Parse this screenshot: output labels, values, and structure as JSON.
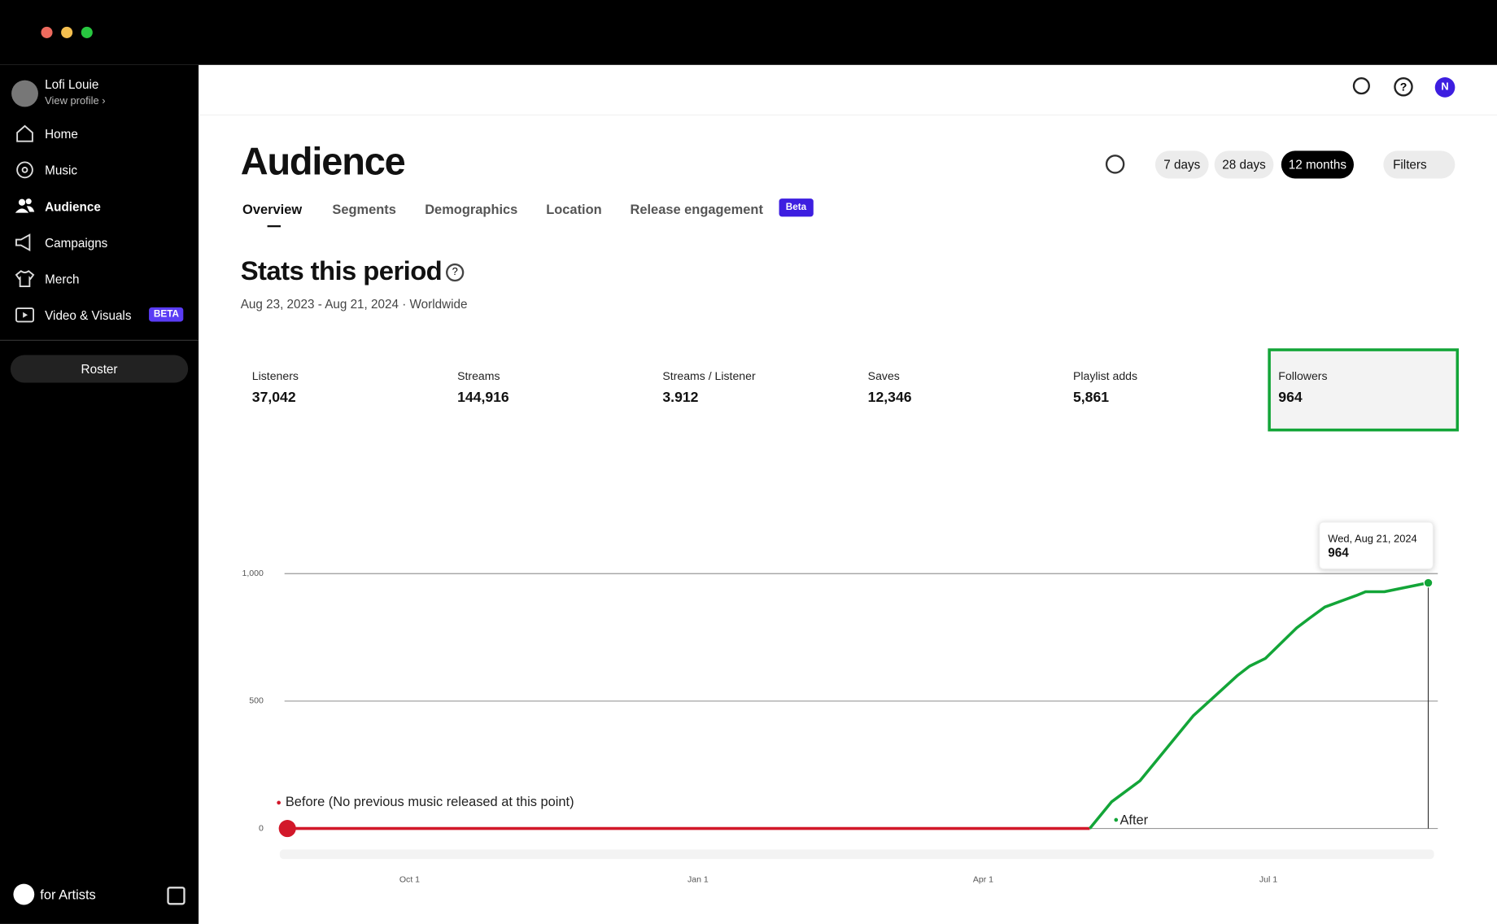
{
  "sidebar": {
    "user": "Lofi Louie",
    "profile_link": "View profile ›",
    "nav": [
      "Home",
      "Music",
      "Audience",
      "Campaigns",
      "Merch",
      "Video & Visuals"
    ],
    "nav_badge": "BETA",
    "roster": "Roster",
    "footer": "for Artists"
  },
  "header": {
    "avatar": "N",
    "title": "Audience",
    "tabs": [
      "Overview",
      "Segments",
      "Demographics",
      "Location",
      "Release engagement"
    ],
    "tab_badge": "Beta",
    "ranges": [
      "7 days",
      "28 days",
      "12 months"
    ],
    "filters": "Filters"
  },
  "stats": {
    "title": "Stats this period",
    "period": "Aug 23, 2023 - Aug 21, 2024 · Worldwide",
    "metrics": [
      {
        "label": "Listeners",
        "value": "37,042"
      },
      {
        "label": "Streams",
        "value": "144,916"
      },
      {
        "label": "Streams / Listener",
        "value": "3.912"
      },
      {
        "label": "Saves",
        "value": "12,346"
      },
      {
        "label": "Playlist adds",
        "value": "5,861"
      },
      {
        "label": "Followers",
        "value": "964"
      }
    ]
  },
  "chart_data": {
    "type": "line",
    "x": [
      0,
      256,
      263,
      272,
      279,
      289,
      295,
      303,
      307,
      312,
      322,
      326,
      331,
      341,
      344,
      350,
      364
    ],
    "xlim": [
      0,
      364
    ],
    "xticks": [
      {
        "value": 39,
        "label": "Oct 1"
      },
      {
        "value": 131,
        "label": "Jan 1"
      },
      {
        "value": 222,
        "label": "Apr 1"
      },
      {
        "value": 313,
        "label": "Jul 1"
      }
    ],
    "ylim": [
      0,
      1000
    ],
    "yticks": [
      0,
      500,
      {
        "value": 1000,
        "label": "1,000"
      }
    ],
    "grid": true,
    "series": [
      {
        "name": "Before (No previous music released at this point)",
        "color": "#d2182a",
        "values": [
          0,
          0,
          null,
          null,
          null,
          null,
          null,
          null,
          null,
          null,
          null,
          null,
          null,
          null,
          null,
          null,
          null
        ]
      },
      {
        "name": "After",
        "color": "#13a538",
        "values": [
          null,
          0,
          105,
          187,
          292,
          442,
          509,
          599,
          637,
          667,
          787,
          824,
          869,
          914,
          929,
          929,
          964
        ]
      }
    ],
    "tooltip": {
      "date": "Wed, Aug 21, 2024",
      "value": 964
    }
  }
}
